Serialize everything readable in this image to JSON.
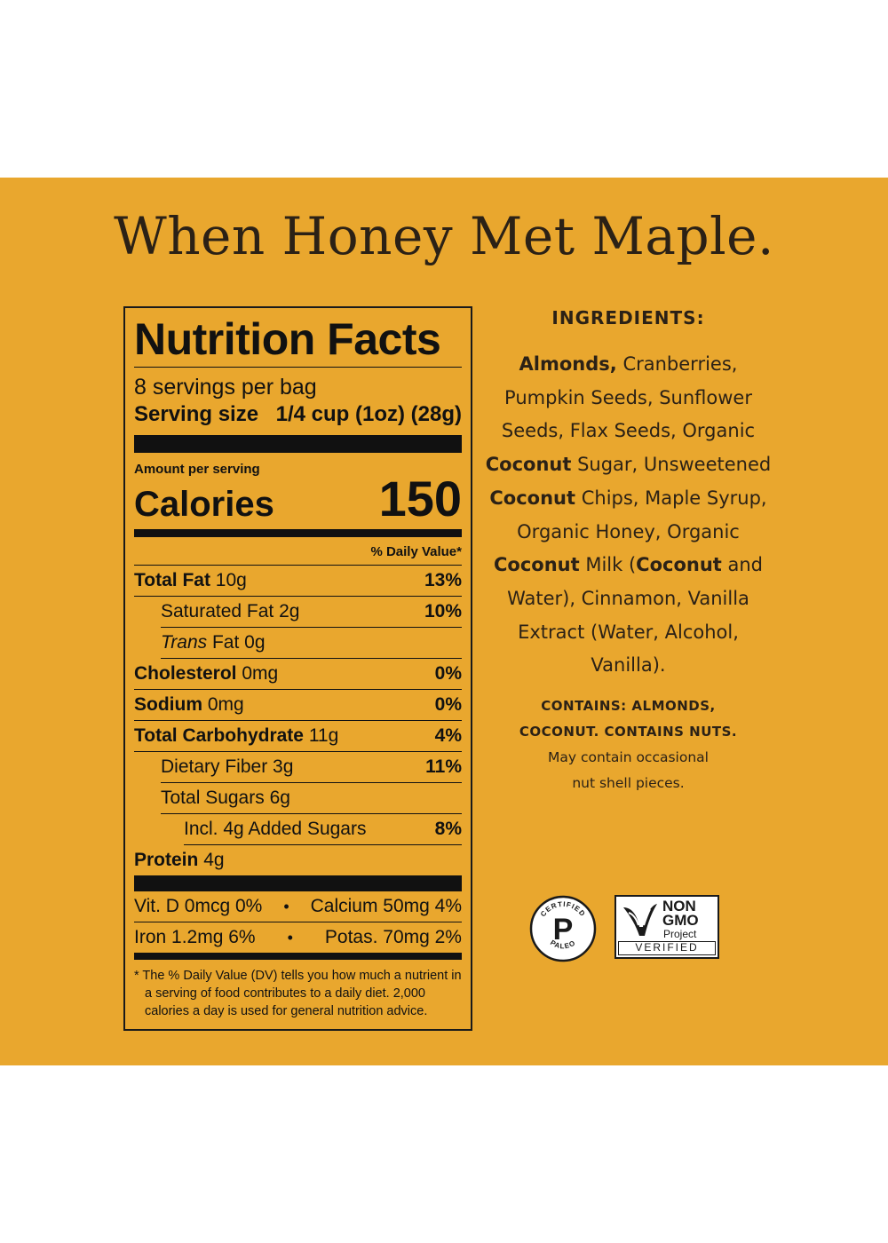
{
  "title": "When Honey Met Maple.",
  "nutrition": {
    "heading": "Nutrition Facts",
    "servings_per": "8 servings per bag",
    "serving_size_label": "Serving size",
    "serving_size_value": "1/4 cup (1oz) (28g)",
    "amount_per_serving": "Amount per serving",
    "calories_label": "Calories",
    "calories_value": "150",
    "dv_header": "% Daily Value*",
    "rows": [
      {
        "label": "Total Fat",
        "amount": "10g",
        "dv": "13%"
      },
      {
        "label": "Saturated Fat",
        "amount": "2g",
        "dv": "10%"
      },
      {
        "label": "Trans",
        "label_rest": "Fat",
        "amount": "0g",
        "dv": ""
      },
      {
        "label": "Cholesterol",
        "amount": "0mg",
        "dv": "0%"
      },
      {
        "label": "Sodium",
        "amount": "0mg",
        "dv": "0%"
      },
      {
        "label": "Total Carbohydrate",
        "amount": "11g",
        "dv": "4%"
      },
      {
        "label": "Dietary Fiber",
        "amount": "3g",
        "dv": "11%"
      },
      {
        "label": "Total Sugars",
        "amount": "6g",
        "dv": ""
      },
      {
        "label": "Incl. 4g Added Sugars",
        "amount": "",
        "dv": "8%"
      },
      {
        "label": "Protein",
        "amount": "4g",
        "dv": ""
      }
    ],
    "vitamins": [
      {
        "left": "Vit. D 0mcg 0%",
        "right": "Calcium 50mg 4%"
      },
      {
        "left": "Iron 1.2mg 6%",
        "right": "Potas. 70mg 2%"
      }
    ],
    "bullet": "•",
    "footnote": "* The % Daily Value (DV) tells you how much a nutrient in a serving of food contributes to a daily diet. 2,000 calories a day is used for general nutrition advice."
  },
  "ingredients": {
    "heading": "INGREDIENTS:",
    "parts": [
      {
        "t": "Almonds,",
        "b": true
      },
      {
        "t": " Cranberries, Pumpkin Seeds, Sunflower Seeds, Flax Seeds, Organic ",
        "b": false
      },
      {
        "t": "Coconut",
        "b": true
      },
      {
        "t": " Sugar, Unsweetened ",
        "b": false
      },
      {
        "t": "Coconut",
        "b": true
      },
      {
        "t": " Chips, Maple Syrup, Organic Honey, Organic ",
        "b": false
      },
      {
        "t": "Coconut",
        "b": true
      },
      {
        "t": " Milk (",
        "b": false
      },
      {
        "t": "Coconut",
        "b": true
      },
      {
        "t": " and Water), Cinnamon, Vanilla Extract (Water, Alcohol, Vanilla).",
        "b": false
      }
    ],
    "contains_1": "CONTAINS:  ALMONDS,",
    "contains_2": "COCONUT. CONTAINS NUTS.",
    "may_1": "May contain occasional",
    "may_2": "nut shell pieces."
  },
  "badges": {
    "paleo_top": "CERTIFIED",
    "paleo_letter": "P",
    "paleo_bottom": "PALEO",
    "nongmo_1": "NON",
    "nongmo_2": "GMO",
    "nongmo_3": "Project",
    "nongmo_4": "VERIFIED"
  }
}
